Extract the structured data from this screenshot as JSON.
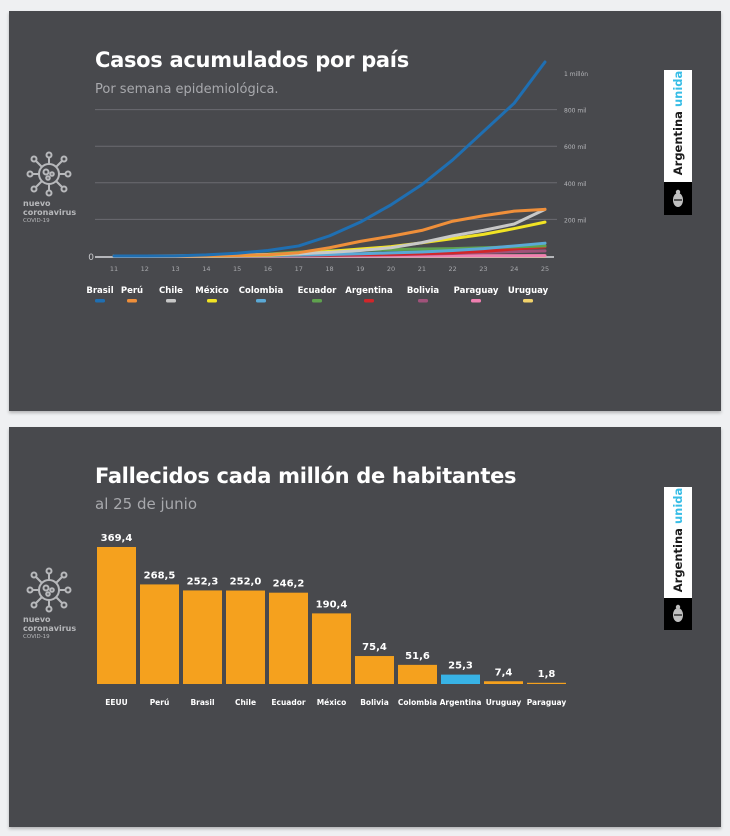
{
  "logo": {
    "line1": "nuevo",
    "line2": "coronavirus",
    "line3": "COVID-19"
  },
  "brand": {
    "word1": "Argentina",
    "word2": "unida",
    "accent_color": "#37bde6"
  },
  "chart_data": [
    {
      "type": "line",
      "title": "Casos acumulados por país",
      "subtitle": "Por semana epidemiológica.",
      "xlabel": "",
      "ylabel": "",
      "x": [
        11,
        12,
        13,
        14,
        15,
        16,
        17,
        18,
        19,
        20,
        21,
        22,
        23,
        24,
        25
      ],
      "x_tick_labels": [
        "11",
        "12",
        "13",
        "14",
        "15",
        "16",
        "17",
        "18",
        "19",
        "20",
        "21",
        "22",
        "23",
        "24",
        "25"
      ],
      "ylim": [
        0,
        1000000
      ],
      "y_ticks": [
        0,
        200000,
        400000,
        600000,
        800000,
        1000000
      ],
      "y_tick_labels": [
        "0",
        "200 mil",
        "400 mil",
        "600 mil",
        "800 mil",
        "1 millón"
      ],
      "grid": true,
      "legend_position": "bottom",
      "series": [
        {
          "name": "Brasil",
          "color": "#1f6fb2",
          "values": [
            0,
            0,
            1000,
            6000,
            15000,
            30000,
            55000,
            110000,
            185000,
            280000,
            390000,
            525000,
            680000,
            835000,
            1060000
          ]
        },
        {
          "name": "Perú",
          "color": "#ef8f3a",
          "values": [
            0,
            0,
            0,
            1000,
            3000,
            7000,
            18000,
            45000,
            80000,
            108000,
            140000,
            190000,
            220000,
            245000,
            255000
          ]
        },
        {
          "name": "Chile",
          "color": "#c8c8c8",
          "values": [
            0,
            0,
            500,
            2000,
            5000,
            8000,
            12000,
            20000,
            30000,
            45000,
            73000,
            110000,
            140000,
            175000,
            255000
          ]
        },
        {
          "name": "México",
          "color": "#f1e324",
          "values": [
            0,
            0,
            0,
            500,
            2000,
            5000,
            12000,
            25000,
            38000,
            51000,
            72000,
            95000,
            118000,
            150000,
            185000
          ]
        },
        {
          "name": "Colombia",
          "color": "#5aa9d6",
          "values": [
            0,
            0,
            0,
            500,
            1500,
            3000,
            5000,
            8000,
            12000,
            17000,
            22000,
            30000,
            40000,
            55000,
            70000
          ]
        },
        {
          "name": "Ecuador",
          "color": "#5fa24e",
          "values": [
            0,
            0,
            0,
            1000,
            4000,
            10000,
            22000,
            28000,
            32000,
            35000,
            38000,
            40000,
            45000,
            50000,
            55000
          ]
        },
        {
          "name": "Argentina",
          "color": "#d1262a",
          "values": [
            0,
            0,
            0,
            500,
            1500,
            2500,
            3500,
            5000,
            7000,
            9000,
            12000,
            17000,
            25000,
            38000,
            50000
          ]
        },
        {
          "name": "Bolivia",
          "color": "#a0527a",
          "values": [
            0,
            0,
            0,
            0,
            200,
            500,
            1000,
            2500,
            4500,
            7000,
            10000,
            14000,
            19000,
            24000,
            28000
          ]
        },
        {
          "name": "Paraguay",
          "color": "#ef7fb0",
          "values": [
            0,
            0,
            0,
            0,
            100,
            200,
            300,
            500,
            700,
            900,
            1000,
            1200,
            1400,
            1600,
            1800
          ]
        },
        {
          "name": "Uruguay",
          "color": "#f3d36b",
          "values": [
            0,
            0,
            0,
            100,
            300,
            500,
            600,
            700,
            700,
            750,
            800,
            850,
            900,
            920,
            950
          ]
        }
      ]
    },
    {
      "type": "bar",
      "title": "Fallecidos cada millón de habitantes",
      "subtitle": "al 25 de junio",
      "xlabel": "",
      "ylabel": "",
      "categories": [
        "EEUU",
        "Perú",
        "Brasil",
        "Chile",
        "Ecuador",
        "México",
        "Bolivia",
        "Colombia",
        "Argentina",
        "Uruguay",
        "Paraguay"
      ],
      "values": [
        369.4,
        268.5,
        252.3,
        252.0,
        246.2,
        190.4,
        75.4,
        51.6,
        25.3,
        7.4,
        1.8
      ],
      "value_labels": [
        "369,4",
        "268,5",
        "252,3",
        "252,0",
        "246,2",
        "190,4",
        "75,4",
        "51,6",
        "25,3",
        "7,4",
        "1,8"
      ],
      "colors": [
        "#f5a11e",
        "#f5a11e",
        "#f5a11e",
        "#f5a11e",
        "#f5a11e",
        "#f5a11e",
        "#f5a11e",
        "#f5a11e",
        "#38b3e6",
        "#f5a11e",
        "#f5a11e"
      ],
      "ylim": [
        0,
        369.4
      ],
      "grid": false
    }
  ]
}
